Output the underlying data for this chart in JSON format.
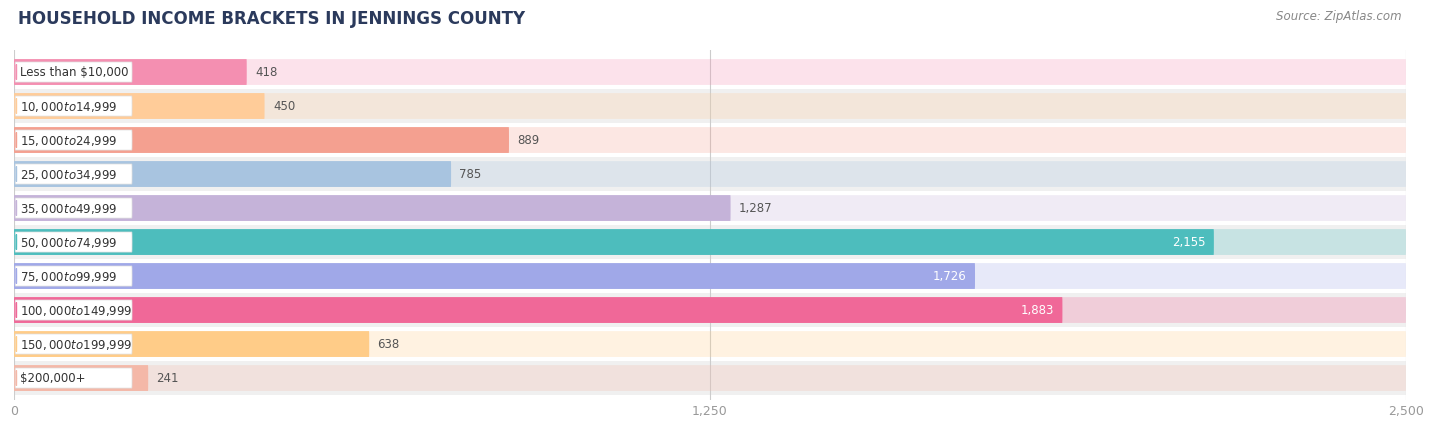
{
  "title": "HOUSEHOLD INCOME BRACKETS IN JENNINGS COUNTY",
  "source": "Source: ZipAtlas.com",
  "categories": [
    "Less than $10,000",
    "$10,000 to $14,999",
    "$15,000 to $24,999",
    "$25,000 to $34,999",
    "$35,000 to $49,999",
    "$50,000 to $74,999",
    "$75,000 to $99,999",
    "$100,000 to $149,999",
    "$150,000 to $199,999",
    "$200,000+"
  ],
  "values": [
    418,
    450,
    889,
    785,
    1287,
    2155,
    1726,
    1883,
    638,
    241
  ],
  "bar_colors": [
    "#f48fb1",
    "#ffcc99",
    "#f4a090",
    "#a8c4e0",
    "#c5b3d9",
    "#4dbdbd",
    "#a0a8e8",
    "#f06898",
    "#ffcc88",
    "#f4b8a8"
  ],
  "xlim": [
    0,
    2500
  ],
  "xticks": [
    0,
    1250,
    2500
  ],
  "inside_label_indices": [
    5,
    6,
    7
  ],
  "background_color": "#f7f7f7",
  "bar_bg_color": "#e8e8e8",
  "row_bg_colors": [
    "#ffffff",
    "#f0f0f0"
  ],
  "title_color": "#2b3a5c",
  "title_fontsize": 12,
  "source_fontsize": 8.5,
  "label_fontsize": 8.5,
  "cat_fontsize": 8.5,
  "tick_fontsize": 9,
  "tick_color": "#999999"
}
